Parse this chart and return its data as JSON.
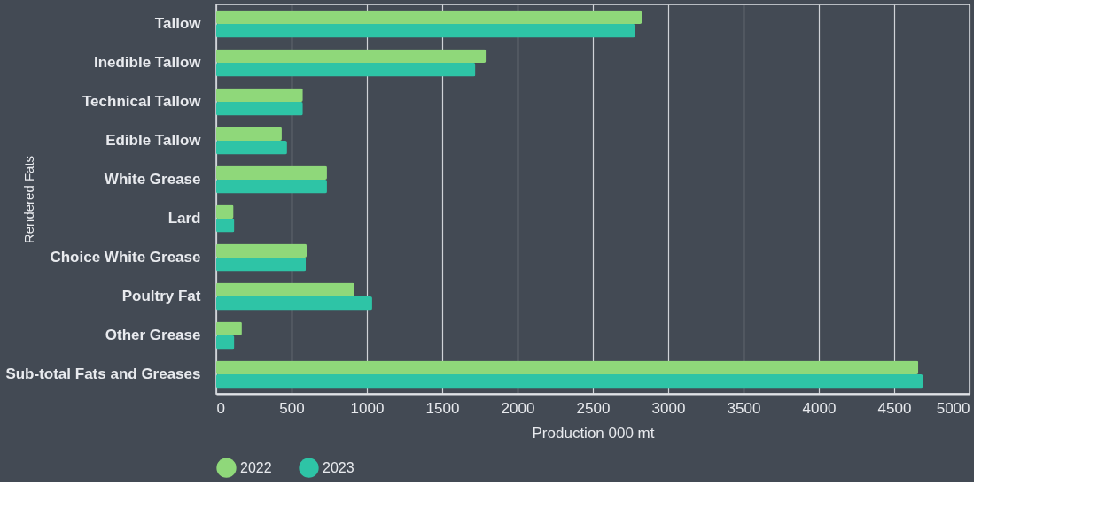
{
  "chart_data": {
    "type": "bar",
    "orientation": "horizontal",
    "xlabel": "Production 000 mt",
    "ylabel": "Rendered Fats",
    "categories": [
      "Tallow",
      "Inedible Tallow",
      "Technical Tallow",
      "Edible Tallow",
      "White Grease",
      "Lard",
      "Choice White Grease",
      "Poultry Fat",
      "Other Grease",
      "Sub-total Fats and Greases"
    ],
    "series": [
      {
        "name": "2022",
        "color": "#8fd87a",
        "values": [
          2825,
          1790,
          575,
          435,
          735,
          115,
          600,
          915,
          170,
          4660
        ]
      },
      {
        "name": "2023",
        "color": "#2ec4a6",
        "values": [
          2780,
          1720,
          575,
          470,
          735,
          120,
          595,
          1035,
          120,
          4690
        ]
      }
    ],
    "xlim": [
      0,
      5000
    ],
    "xticks": [
      0,
      500,
      1000,
      1500,
      2000,
      2500,
      3000,
      3500,
      4000,
      4500,
      5000
    ],
    "grid": "x",
    "legend": "bottom"
  }
}
